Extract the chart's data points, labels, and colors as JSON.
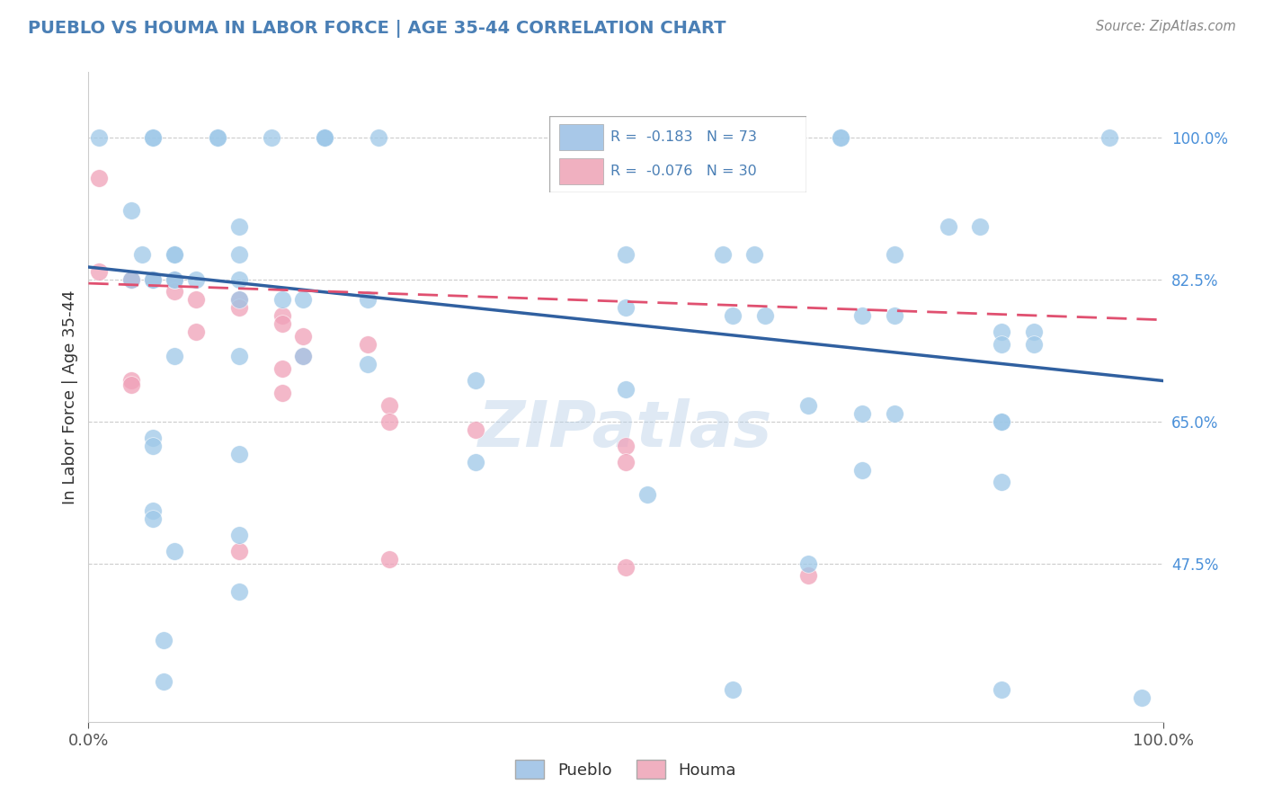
{
  "title": "PUEBLO VS HOUMA IN LABOR FORCE | AGE 35-44 CORRELATION CHART",
  "source": "Source: ZipAtlas.com",
  "ylabel": "In Labor Force | Age 35-44",
  "ytick_labels": [
    "100.0%",
    "82.5%",
    "65.0%",
    "47.5%"
  ],
  "ytick_values": [
    1.0,
    0.825,
    0.65,
    0.475
  ],
  "pueblo_color": "#9ec8e8",
  "houma_color": "#f0a0b8",
  "pueblo_line_color": "#3060a0",
  "houma_line_color": "#e05070",
  "xlim": [
    0.0,
    1.0
  ],
  "ylim": [
    0.28,
    1.08
  ],
  "watermark": "ZIPatlas",
  "background_color": "#ffffff",
  "grid_color": "#cccccc",
  "legend_blue_color": "#a8c8e8",
  "legend_pink_color": "#f0b0c0",
  "pueblo_points": [
    [
      0.01,
      1.0
    ],
    [
      0.06,
      1.0
    ],
    [
      0.06,
      1.0
    ],
    [
      0.12,
      1.0
    ],
    [
      0.12,
      1.0
    ],
    [
      0.17,
      1.0
    ],
    [
      0.22,
      1.0
    ],
    [
      0.22,
      1.0
    ],
    [
      0.22,
      1.0
    ],
    [
      0.27,
      1.0
    ],
    [
      0.58,
      1.0
    ],
    [
      0.58,
      1.0
    ],
    [
      0.58,
      1.0
    ],
    [
      0.7,
      1.0
    ],
    [
      0.7,
      1.0
    ],
    [
      0.95,
      1.0
    ],
    [
      0.04,
      0.91
    ],
    [
      0.14,
      0.89
    ],
    [
      0.8,
      0.89
    ],
    [
      0.83,
      0.89
    ],
    [
      0.05,
      0.855
    ],
    [
      0.08,
      0.855
    ],
    [
      0.08,
      0.855
    ],
    [
      0.14,
      0.855
    ],
    [
      0.5,
      0.855
    ],
    [
      0.59,
      0.855
    ],
    [
      0.62,
      0.855
    ],
    [
      0.75,
      0.855
    ],
    [
      0.04,
      0.825
    ],
    [
      0.06,
      0.825
    ],
    [
      0.06,
      0.825
    ],
    [
      0.08,
      0.825
    ],
    [
      0.08,
      0.825
    ],
    [
      0.1,
      0.825
    ],
    [
      0.14,
      0.825
    ],
    [
      0.14,
      0.8
    ],
    [
      0.18,
      0.8
    ],
    [
      0.2,
      0.8
    ],
    [
      0.26,
      0.8
    ],
    [
      0.5,
      0.79
    ],
    [
      0.6,
      0.78
    ],
    [
      0.63,
      0.78
    ],
    [
      0.72,
      0.78
    ],
    [
      0.75,
      0.78
    ],
    [
      0.85,
      0.76
    ],
    [
      0.88,
      0.76
    ],
    [
      0.85,
      0.745
    ],
    [
      0.88,
      0.745
    ],
    [
      0.08,
      0.73
    ],
    [
      0.14,
      0.73
    ],
    [
      0.2,
      0.73
    ],
    [
      0.26,
      0.72
    ],
    [
      0.36,
      0.7
    ],
    [
      0.5,
      0.69
    ],
    [
      0.67,
      0.67
    ],
    [
      0.72,
      0.66
    ],
    [
      0.75,
      0.66
    ],
    [
      0.85,
      0.65
    ],
    [
      0.85,
      0.65
    ],
    [
      0.06,
      0.63
    ],
    [
      0.06,
      0.62
    ],
    [
      0.14,
      0.61
    ],
    [
      0.36,
      0.6
    ],
    [
      0.72,
      0.59
    ],
    [
      0.85,
      0.575
    ],
    [
      0.52,
      0.56
    ],
    [
      0.06,
      0.54
    ],
    [
      0.06,
      0.53
    ],
    [
      0.14,
      0.51
    ],
    [
      0.08,
      0.49
    ],
    [
      0.67,
      0.475
    ],
    [
      0.14,
      0.44
    ],
    [
      0.07,
      0.38
    ],
    [
      0.07,
      0.33
    ],
    [
      0.6,
      0.32
    ],
    [
      0.85,
      0.32
    ],
    [
      0.98,
      0.31
    ]
  ],
  "houma_points": [
    [
      0.01,
      0.95
    ],
    [
      0.01,
      0.835
    ],
    [
      0.04,
      0.825
    ],
    [
      0.04,
      0.825
    ],
    [
      0.06,
      0.825
    ],
    [
      0.06,
      0.825
    ],
    [
      0.08,
      0.825
    ],
    [
      0.08,
      0.81
    ],
    [
      0.1,
      0.8
    ],
    [
      0.14,
      0.8
    ],
    [
      0.14,
      0.79
    ],
    [
      0.18,
      0.78
    ],
    [
      0.18,
      0.77
    ],
    [
      0.1,
      0.76
    ],
    [
      0.2,
      0.755
    ],
    [
      0.26,
      0.745
    ],
    [
      0.2,
      0.73
    ],
    [
      0.18,
      0.715
    ],
    [
      0.04,
      0.7
    ],
    [
      0.04,
      0.695
    ],
    [
      0.18,
      0.685
    ],
    [
      0.28,
      0.67
    ],
    [
      0.28,
      0.65
    ],
    [
      0.36,
      0.64
    ],
    [
      0.5,
      0.62
    ],
    [
      0.5,
      0.6
    ],
    [
      0.14,
      0.49
    ],
    [
      0.28,
      0.48
    ],
    [
      0.5,
      0.47
    ],
    [
      0.67,
      0.46
    ]
  ]
}
